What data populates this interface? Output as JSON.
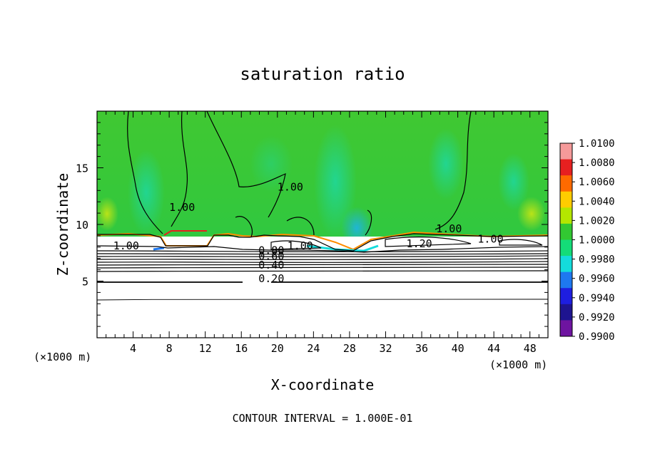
{
  "chart_data": {
    "type": "heatmap",
    "title": "saturation ratio",
    "xlabel": "X-coordinate",
    "ylabel": "Z-coordinate",
    "x_unit": "(×1000 m)",
    "y_unit": "(×1000 m)",
    "footer": "CONTOUR INTERVAL = 1.000E-01",
    "xlim": [
      0,
      50
    ],
    "ylim": [
      0,
      20
    ],
    "x_ticks": [
      4,
      8,
      12,
      16,
      20,
      24,
      28,
      32,
      36,
      40,
      44,
      48
    ],
    "y_ticks": [
      5,
      10,
      15
    ],
    "colorbar": {
      "labels": [
        "1.0100",
        "1.0080",
        "1.0060",
        "1.0040",
        "1.0020",
        "1.0000",
        "0.9980",
        "0.9960",
        "0.9940",
        "0.9920",
        "0.9900"
      ],
      "colors": [
        "#f59a9a",
        "#e62020",
        "#ff6a00",
        "#ffcc00",
        "#b4e600",
        "#32c832",
        "#14dc78",
        "#14dcdc",
        "#1e78f0",
        "#1e1ee0",
        "#1e1490",
        "#6e14a0"
      ]
    },
    "contour_labels": [
      {
        "text": "1.00",
        "x": 1.8,
        "z": 7.8
      },
      {
        "text": "1.00",
        "x": 8.0,
        "z": 11.2
      },
      {
        "text": "1.00",
        "x": 20.0,
        "z": 13.0
      },
      {
        "text": "1.00",
        "x": 21.1,
        "z": 7.8
      },
      {
        "text": "0.80",
        "x": 17.9,
        "z": 7.4
      },
      {
        "text": "0.60",
        "x": 17.9,
        "z": 6.9
      },
      {
        "text": "0.40",
        "x": 17.9,
        "z": 6.1
      },
      {
        "text": "0.20",
        "x": 17.9,
        "z": 4.9
      },
      {
        "text": "1.20",
        "x": 34.3,
        "z": 8.0
      },
      {
        "text": "1.00",
        "x": 37.6,
        "z": 9.3
      },
      {
        "text": "1.00",
        "x": 42.2,
        "z": 8.4
      }
    ]
  }
}
